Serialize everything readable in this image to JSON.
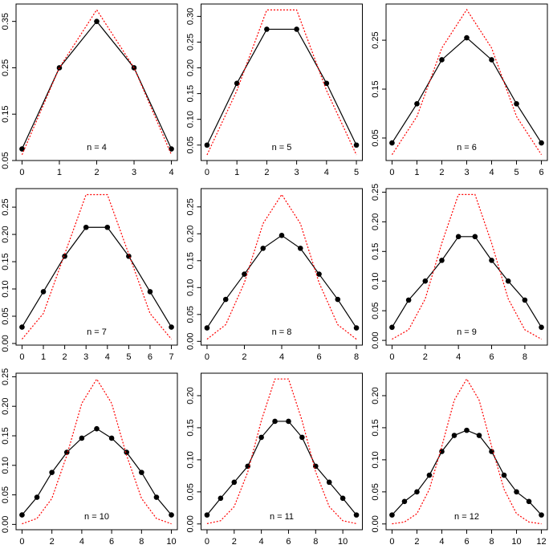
{
  "chart_data": [
    {
      "type": "line",
      "annotation": "n = 4",
      "x": [
        0,
        1,
        2,
        3,
        4
      ],
      "series": [
        {
          "color": "#000000",
          "values": [
            0.075,
            0.25,
            0.35,
            0.25,
            0.075
          ]
        },
        {
          "color": "#ff0000",
          "values": [
            0.0625,
            0.25,
            0.375,
            0.25,
            0.0625
          ]
        }
      ],
      "xlim": [
        -0.16,
        4.16
      ],
      "xticks": [
        0,
        1,
        2,
        3,
        4
      ],
      "ylim": [
        0.05,
        0.3875
      ],
      "yticks": [
        0.05,
        0.15,
        0.25,
        0.35
      ]
    },
    {
      "type": "line",
      "annotation": "n = 5",
      "x": [
        0,
        1,
        2,
        3,
        4,
        5
      ],
      "series": [
        {
          "color": "#000000",
          "values": [
            0.05,
            0.17,
            0.275,
            0.275,
            0.17,
            0.05
          ]
        },
        {
          "color": "#ff0000",
          "values": [
            0.031,
            0.156,
            0.3125,
            0.3125,
            0.156,
            0.031
          ]
        }
      ],
      "xlim": [
        -0.2,
        5.2
      ],
      "xticks": [
        0,
        1,
        2,
        3,
        4,
        5
      ],
      "ylim": [
        0.02,
        0.324
      ],
      "yticks": [
        0.05,
        {
          "value": 0.1,
          "label": "0.10"
        },
        0.15,
        {
          "value": 0.2,
          "label": "0.20"
        },
        0.25,
        {
          "value": 0.3,
          "label": "0.30"
        }
      ]
    },
    {
      "type": "line",
      "annotation": "n = 6",
      "x": [
        0,
        1,
        2,
        3,
        4,
        5,
        6
      ],
      "series": [
        {
          "color": "#000000",
          "values": [
            0.04,
            0.12,
            0.21,
            0.255,
            0.21,
            0.12,
            0.04
          ]
        },
        {
          "color": "#ff0000",
          "values": [
            0.016,
            0.094,
            0.234,
            0.3125,
            0.234,
            0.094,
            0.016
          ]
        }
      ],
      "xlim": [
        -0.24,
        6.24
      ],
      "xticks": [
        0,
        1,
        2,
        3,
        4,
        5,
        6
      ],
      "ylim": [
        0.004,
        0.324
      ],
      "yticks": [
        0.05,
        0.15,
        0.25
      ]
    },
    {
      "type": "line",
      "annotation": "n = 7",
      "x": [
        0,
        1,
        2,
        3,
        4,
        5,
        6,
        7
      ],
      "series": [
        {
          "color": "#000000",
          "values": [
            0.03,
            0.095,
            0.16,
            0.213,
            0.213,
            0.16,
            0.095,
            0.03
          ]
        },
        {
          "color": "#ff0000",
          "values": [
            0.008,
            0.055,
            0.164,
            0.273,
            0.273,
            0.164,
            0.055,
            0.008
          ]
        }
      ],
      "xlim": [
        -0.28,
        7.28
      ],
      "xticks": [
        0,
        1,
        2,
        3,
        4,
        5,
        6,
        7
      ],
      "ylim": [
        -0.003,
        0.284
      ],
      "yticks": [
        {
          "value": 0,
          "label": "0.00"
        },
        0.05,
        {
          "value": 0.1,
          "label": "0.10"
        },
        0.15,
        {
          "value": 0.2,
          "label": "0.20"
        },
        0.25
      ]
    },
    {
      "type": "line",
      "annotation": "n = 8",
      "x": [
        0,
        1,
        2,
        3,
        4,
        5,
        6,
        7,
        8
      ],
      "series": [
        {
          "color": "#000000",
          "values": [
            0.025,
            0.078,
            0.125,
            0.173,
            0.197,
            0.173,
            0.125,
            0.078,
            0.025
          ]
        },
        {
          "color": "#ff0000",
          "values": [
            0.004,
            0.031,
            0.109,
            0.219,
            0.273,
            0.219,
            0.109,
            0.031,
            0.004
          ]
        }
      ],
      "xlim": [
        -0.32,
        8.32
      ],
      "xticks": [
        0,
        2,
        4,
        6,
        8
      ],
      "ylim": [
        -0.007,
        0.284
      ],
      "yticks": [
        {
          "value": 0,
          "label": "0.00"
        },
        0.05,
        {
          "value": 0.1,
          "label": "0.10"
        },
        0.15,
        {
          "value": 0.2,
          "label": "0.20"
        },
        0.25
      ]
    },
    {
      "type": "line",
      "annotation": "n = 9",
      "x": [
        0,
        1,
        2,
        3,
        4,
        5,
        6,
        7,
        8,
        9
      ],
      "series": [
        {
          "color": "#000000",
          "values": [
            0.022,
            0.068,
            0.1,
            0.135,
            0.175,
            0.175,
            0.135,
            0.1,
            0.068,
            0.022
          ]
        },
        {
          "color": "#ff0000",
          "values": [
            0.002,
            0.018,
            0.07,
            0.164,
            0.246,
            0.246,
            0.164,
            0.07,
            0.018,
            0.002
          ]
        }
      ],
      "xlim": [
        -0.36,
        9.36
      ],
      "xticks": [
        0,
        2,
        4,
        6,
        8
      ],
      "ylim": [
        -0.008,
        0.256
      ],
      "yticks": [
        {
          "value": 0,
          "label": "0.00"
        },
        0.05,
        {
          "value": 0.1,
          "label": "0.10"
        },
        0.15,
        {
          "value": 0.2,
          "label": "0.20"
        },
        0.25
      ]
    },
    {
      "type": "line",
      "annotation": "n = 10",
      "x": [
        0,
        1,
        2,
        3,
        4,
        5,
        6,
        7,
        8,
        9,
        10
      ],
      "series": [
        {
          "color": "#000000",
          "values": [
            0.016,
            0.046,
            0.088,
            0.122,
            0.146,
            0.162,
            0.146,
            0.122,
            0.088,
            0.046,
            0.016
          ]
        },
        {
          "color": "#ff0000",
          "values": [
            0.001,
            0.01,
            0.044,
            0.117,
            0.205,
            0.246,
            0.205,
            0.117,
            0.044,
            0.01,
            0.001
          ]
        }
      ],
      "xlim": [
        -0.4,
        10.4
      ],
      "xticks": [
        0,
        2,
        4,
        6,
        8,
        10
      ],
      "ylim": [
        -0.009,
        0.256
      ],
      "yticks": [
        {
          "value": 0,
          "label": "0.00"
        },
        0.05,
        {
          "value": 0.1,
          "label": "0.10"
        },
        0.15,
        {
          "value": 0.2,
          "label": "0.20"
        },
        0.25
      ]
    },
    {
      "type": "line",
      "annotation": "n = 11",
      "x": [
        0,
        1,
        2,
        3,
        4,
        5,
        6,
        7,
        8,
        9,
        10,
        11
      ],
      "series": [
        {
          "color": "#000000",
          "values": [
            0.014,
            0.04,
            0.065,
            0.09,
            0.135,
            0.16,
            0.16,
            0.135,
            0.09,
            0.065,
            0.04,
            0.014
          ]
        },
        {
          "color": "#ff0000",
          "values": [
            0.0005,
            0.005,
            0.027,
            0.081,
            0.161,
            0.226,
            0.226,
            0.161,
            0.081,
            0.027,
            0.005,
            0.0005
          ]
        }
      ],
      "xlim": [
        -0.44,
        11.44
      ],
      "xticks": [
        0,
        2,
        4,
        6,
        8,
        10
      ],
      "ylim": [
        -0.009,
        0.235
      ],
      "yticks": [
        {
          "value": 0,
          "label": "0.00"
        },
        0.05,
        {
          "value": 0.1,
          "label": "0.10"
        },
        0.15,
        {
          "value": 0.2,
          "label": "0.20"
        }
      ]
    },
    {
      "type": "line",
      "annotation": "n = 12",
      "x": [
        0,
        1,
        2,
        3,
        4,
        5,
        6,
        7,
        8,
        9,
        10,
        11,
        12
      ],
      "series": [
        {
          "color": "#000000",
          "values": [
            0.014,
            0.035,
            0.05,
            0.076,
            0.113,
            0.138,
            0.146,
            0.138,
            0.113,
            0.076,
            0.05,
            0.035,
            0.014
          ]
        },
        {
          "color": "#ff0000",
          "values": [
            0.0002,
            0.003,
            0.016,
            0.054,
            0.121,
            0.193,
            0.226,
            0.193,
            0.121,
            0.054,
            0.016,
            0.003,
            0.0002
          ]
        }
      ],
      "xlim": [
        -0.48,
        12.48
      ],
      "xticks": [
        0,
        2,
        4,
        6,
        8,
        10,
        12
      ],
      "ylim": [
        -0.009,
        0.235
      ],
      "yticks": [
        {
          "value": 0,
          "label": "0.00"
        },
        0.05,
        {
          "value": 0.1,
          "label": "0.10"
        },
        0.15,
        {
          "value": 0.2,
          "label": "0.20"
        }
      ]
    }
  ]
}
